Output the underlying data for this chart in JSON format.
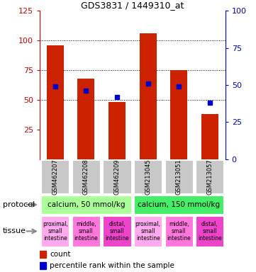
{
  "title": "GDS3831 / 1449310_at",
  "samples": [
    "GSM462207",
    "GSM462208",
    "GSM462209",
    "GSM213045",
    "GSM213051",
    "GSM213057"
  ],
  "count_values": [
    96,
    68,
    48,
    106,
    75,
    38
  ],
  "percentile_values": [
    49,
    46,
    42,
    51,
    49,
    38
  ],
  "left_ylim": [
    0,
    125
  ],
  "left_yticks": [
    25,
    50,
    75,
    100,
    125
  ],
  "right_ylim": [
    0,
    100
  ],
  "right_yticks": [
    0,
    25,
    50,
    75,
    100
  ],
  "bar_color": "#cc2200",
  "dot_color": "#0000cc",
  "sample_bg_color": "#c8c8c8",
  "protocol_colors": [
    "#aaff99",
    "#44ee66"
  ],
  "tissue_colors": [
    "#ffaaee",
    "#ff77dd",
    "#ee44cc",
    "#ffaaee",
    "#ff77dd",
    "#ee44cc"
  ],
  "protocols": [
    {
      "label": "calcium, 50 mmol/kg",
      "cols": [
        0,
        1,
        2
      ]
    },
    {
      "label": "calcium, 150 mmol/kg",
      "cols": [
        3,
        4,
        5
      ]
    }
  ],
  "tissues": [
    "proximal,\nsmall\nintestine",
    "middle,\nsmall\nintestine",
    "distal,\nsmall\nintestine",
    "proximal,\nsmall\nintestine",
    "middle,\nsmall\nintestine",
    "distal,\nsmall\nintestine"
  ],
  "legend_count_label": "count",
  "legend_pct_label": "percentile rank within the sample",
  "protocol_row_label": "protocol",
  "tissue_row_label": "tissue",
  "left_axis_color": "#cc0000",
  "right_axis_color": "#0000cc"
}
